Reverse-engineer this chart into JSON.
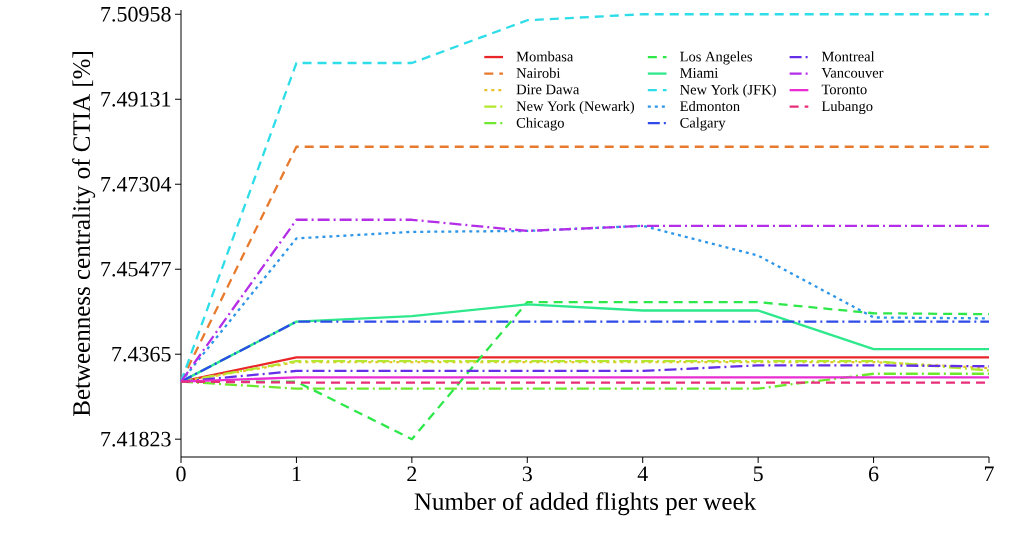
{
  "chart_data": {
    "type": "line",
    "xlabel": "Number of added flights per week",
    "ylabel": "Betweenness centrality of CTIA [%]",
    "x": [
      0,
      1,
      2,
      3,
      4,
      5,
      6,
      7
    ],
    "xlim": [
      0,
      7
    ],
    "xticks": [
      0,
      1,
      2,
      3,
      4,
      5,
      6,
      7
    ],
    "ylim": [
      7.4144,
      7.5105
    ],
    "yticks": [
      7.41823,
      7.4365,
      7.45477,
      7.47304,
      7.49131,
      7.50958
    ],
    "grid": false,
    "legend": "top right",
    "marker": "none",
    "series": [
      {
        "name": "Mombasa",
        "color": "#e8262a",
        "line_style": "solid",
        "values": [
          7.4306,
          7.4358,
          7.4358,
          7.4358,
          7.4358,
          7.4358,
          7.4358,
          7.4358
        ]
      },
      {
        "name": "Nairobi",
        "color": "#e87a2e",
        "line_style": "dashed",
        "values": [
          7.4306,
          7.4811,
          7.4811,
          7.4811,
          7.4811,
          7.4811,
          7.4811,
          7.4811
        ]
      },
      {
        "name": "Dire Dawa",
        "color": "#e8c22e",
        "line_style": "dotted",
        "values": [
          7.4306,
          7.4348,
          7.4348,
          7.4348,
          7.4348,
          7.4348,
          7.4348,
          7.4335
        ]
      },
      {
        "name": "New York (Newark)",
        "color": "#b4e82e",
        "line_style": "dashdot",
        "values": [
          7.4306,
          7.435,
          7.435,
          7.435,
          7.435,
          7.435,
          7.435,
          7.433
        ]
      },
      {
        "name": "Chicago",
        "color": "#6ee82e",
        "line_style": "dashdot",
        "values": [
          7.4306,
          7.4291,
          7.4291,
          7.4291,
          7.4291,
          7.4291,
          7.4323,
          7.4323
        ]
      },
      {
        "name": "Los Angeles",
        "color": "#2ee84a",
        "line_style": "dashed",
        "values": [
          7.4306,
          7.4306,
          7.41823,
          7.4477,
          7.4477,
          7.4477,
          7.4453,
          7.4451
        ]
      },
      {
        "name": "Miami",
        "color": "#2ee88c",
        "line_style": "solid",
        "values": [
          7.4306,
          7.4435,
          7.4447,
          7.4472,
          7.4459,
          7.4459,
          7.4376,
          7.4376
        ]
      },
      {
        "name": "New York (JFK)",
        "color": "#2edde8",
        "line_style": "dashed",
        "values": [
          7.4306,
          7.4991,
          7.4991,
          7.5083,
          7.50958,
          7.50958,
          7.50958,
          7.50958
        ]
      },
      {
        "name": "Edmonton",
        "color": "#2e96e8",
        "line_style": "dotted",
        "values": [
          7.4306,
          7.4614,
          7.4628,
          7.463,
          7.4641,
          7.4577,
          7.4444,
          7.4442
        ]
      },
      {
        "name": "Calgary",
        "color": "#2e4ae8",
        "line_style": "dashdot",
        "values": [
          7.4306,
          7.4435,
          7.4435,
          7.4435,
          7.4435,
          7.4435,
          7.4435,
          7.4435
        ]
      },
      {
        "name": "Montreal",
        "color": "#642ee8",
        "line_style": "dashdot",
        "values": [
          7.4306,
          7.4329,
          7.4329,
          7.4329,
          7.4329,
          7.4341,
          7.4341,
          7.4339
        ]
      },
      {
        "name": "Vancouver",
        "color": "#b42ee8",
        "line_style": "dashdot",
        "values": [
          7.4306,
          7.4654,
          7.4654,
          7.463,
          7.4641,
          7.4641,
          7.4641,
          7.4641
        ]
      },
      {
        "name": "Toronto",
        "color": "#e82ed2",
        "line_style": "solid",
        "values": [
          7.4306,
          7.4315,
          7.4315,
          7.4315,
          7.4315,
          7.4315,
          7.4315,
          7.4315
        ]
      },
      {
        "name": "Lubango",
        "color": "#e82e7a",
        "line_style": "dashed",
        "values": [
          7.4306,
          7.4304,
          7.4304,
          7.4304,
          7.4304,
          7.4304,
          7.4304,
          7.4304
        ]
      }
    ]
  }
}
